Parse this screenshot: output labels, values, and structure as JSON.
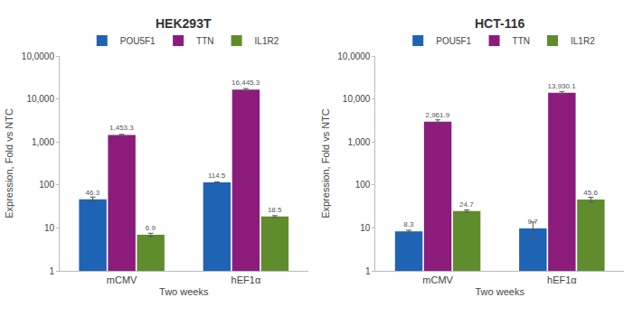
{
  "chart_data": [
    {
      "type": "bar",
      "title": "HEK293T",
      "categories": [
        "mCMV",
        "hEF1α"
      ],
      "x_label": "Two weeks",
      "y_label": "Expression, Fold vs NTC",
      "series": [
        {
          "name": "POU5F1",
          "color": "#1f63b4",
          "values": [
            46.3,
            114.5
          ],
          "errors": [
            6,
            3
          ],
          "value_labels": [
            "46.3",
            "114.5"
          ]
        },
        {
          "name": "TTN",
          "color": "#8b1c7c",
          "values": [
            1453.3,
            16445.3
          ],
          "errors": [
            50,
            1000
          ],
          "value_labels": [
            "1,453.3",
            "16,445.3"
          ]
        },
        {
          "name": "IL1R2",
          "color": "#5f8d2e",
          "values": [
            6.9,
            18.5
          ],
          "errors": [
            0.6,
            0.8
          ],
          "value_labels": [
            "6.9",
            "18.5"
          ]
        }
      ],
      "ylim": [
        1,
        100000
      ],
      "yticks": [
        1,
        10,
        100,
        {
          "value": 1000,
          "label": "1,000"
        },
        {
          "value": 10000,
          "label": "10,000"
        },
        {
          "value": 100000,
          "label": "10,0000"
        }
      ],
      "log": "y",
      "grid": false,
      "legend": "top",
      "data_labels": true
    },
    {
      "type": "bar",
      "title": "HCT-116",
      "categories": [
        "mCMV",
        "hEF1α"
      ],
      "x_label": "Two weeks",
      "y_label": "Expression, Fold vs NTC",
      "series": [
        {
          "name": "POU5F1",
          "color": "#1f63b4",
          "values": [
            8.3,
            9.7
          ],
          "errors": [
            0.5,
            4
          ],
          "value_labels": [
            "8.3",
            "9.7"
          ]
        },
        {
          "name": "TTN",
          "color": "#8b1c7c",
          "values": [
            2961.9,
            13930.1
          ],
          "errors": [
            300,
            1000
          ],
          "value_labels": [
            "2,961.9",
            "13,930.1"
          ]
        },
        {
          "name": "IL1R2",
          "color": "#5f8d2e",
          "values": [
            24.7,
            45.6
          ],
          "errors": [
            1.5,
            6
          ],
          "value_labels": [
            "24.7",
            "45.6"
          ]
        }
      ],
      "ylim": [
        1,
        100000
      ],
      "yticks": [
        1,
        10,
        100,
        {
          "value": 1000,
          "label": "1,000"
        },
        {
          "value": 10000,
          "label": "10,000"
        },
        {
          "value": 100000,
          "label": "10,0000"
        }
      ],
      "log": "y",
      "grid": false,
      "legend": "top",
      "data_labels": true
    }
  ]
}
